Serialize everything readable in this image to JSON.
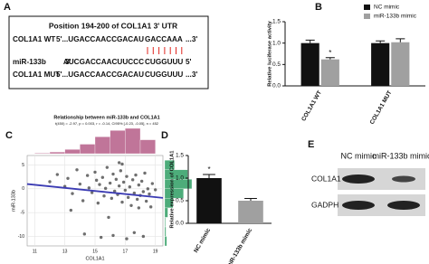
{
  "panel_labels": [
    "A",
    "B",
    "C",
    "D",
    "E"
  ],
  "sequence_panel": {
    "title": "Position 194-200 of COL1A1 3' UTR",
    "rows": [
      {
        "label": "COL1A1 WT",
        "seq": "5'...UGACCAACCGACAU",
        "site": "GACCAAA",
        "right": "...3'"
      },
      {
        "label": "miR-133b",
        "left": "3'",
        "seq": "AUCGACCAACUUCCC",
        "site": "CUGGUUU",
        "right": "5'"
      },
      {
        "label": "COL1A1 MUT",
        "seq": "5'...UGACCAACCGACAU",
        "site": "CUGGUUU",
        "right": "...3'"
      }
    ],
    "site_color": "#e0261f"
  },
  "chart_data": [
    {
      "type": "bar",
      "ylabel": "Relative luciferase activity",
      "categories": [
        "COL1A1 WT",
        "COL1A1 MUT"
      ],
      "series": [
        {
          "name": "NC mimic",
          "color": "#111111",
          "values": [
            1.0,
            1.0
          ],
          "errors": [
            0.07,
            0.05
          ]
        },
        {
          "name": "miR-133b mimic",
          "color": "#a0a0a0",
          "values": [
            0.62,
            1.02
          ],
          "errors": [
            0.04,
            0.08
          ]
        }
      ],
      "ylim": [
        0,
        1.5
      ],
      "yticks": [
        {
          "value": 0,
          "label": "0.0"
        },
        {
          "value": 0.5,
          "label": "0.5"
        },
        {
          "value": 1,
          "label": "1.0"
        },
        {
          "value": 1.5,
          "label": "1.5"
        }
      ],
      "annotation": "*",
      "legend": "top-right"
    },
    {
      "type": "scatter",
      "title": "Relationship between miR-133b and COL1A1",
      "subtitle": "t(450) = -2.97, p = 0.003, r = -0.14, CI95% [-0.23, -0.05], n = 452",
      "xlabel": "COL1A1",
      "ylabel": "miR-133b",
      "color": "#222222",
      "x": [
        12.0,
        12.5,
        13.0,
        13.2,
        13.5,
        13.8,
        14.0,
        14.2,
        14.5,
        14.6,
        14.8,
        15.0,
        15.1,
        15.2,
        15.3,
        15.5,
        15.6,
        15.7,
        15.8,
        16.0,
        16.1,
        16.2,
        16.3,
        16.4,
        16.5,
        16.6,
        16.7,
        16.8,
        16.9,
        17.0,
        17.1,
        17.2,
        17.3,
        17.4,
        17.5,
        17.6,
        17.7,
        17.8,
        17.9,
        18.0,
        18.1,
        18.2,
        18.3,
        18.4,
        18.5,
        18.6,
        18.8,
        19.0,
        14.3,
        15.4,
        16.2,
        17.1,
        17.6,
        18.2,
        13.4,
        16.8,
        17.9,
        15.9,
        16.6,
        18.7
      ],
      "y": [
        1.5,
        3.0,
        0.5,
        2.2,
        -1.0,
        4.0,
        1.0,
        -2.5,
        2.8,
        0.2,
        -0.8,
        3.5,
        1.8,
        -3.0,
        0.9,
        2.4,
        -1.5,
        0.1,
        4.5,
        1.2,
        -2.0,
        3.1,
        -0.5,
        2.0,
        -1.2,
        0.6,
        3.8,
        -2.8,
        1.4,
        -0.3,
        2.6,
        -1.8,
        0.4,
        -3.5,
        1.9,
        -0.9,
        2.9,
        -2.2,
        0.8,
        -1.4,
        1.6,
        -0.6,
        3.3,
        -2.6,
        0.0,
        -1.1,
        1.1,
        -0.2,
        -9.5,
        -10.2,
        -9.8,
        -10.5,
        -9.2,
        -10.0,
        -4.5,
        5.2,
        -4.0,
        -6.0,
        5.5,
        -3.8
      ],
      "xlim": [
        10.5,
        19.5
      ],
      "ylim": [
        -12,
        7
      ],
      "xticks": [
        11,
        13,
        15,
        17,
        19
      ],
      "yticks": [
        -10,
        -5,
        0,
        5
      ],
      "grid": true,
      "fit": {
        "x": [
          10.5,
          19.5
        ],
        "y": [
          1.0,
          -1.9
        ],
        "color": "#3b3bb3"
      },
      "x_hist": {
        "bins": [
          11,
          12,
          13,
          14,
          15,
          16,
          17,
          18,
          19
        ],
        "counts": [
          3,
          8,
          20,
          45,
          80,
          110,
          120,
          66
        ],
        "color": "#b0527f"
      },
      "y_hist": {
        "bins": [
          -12,
          -10,
          -8,
          -6,
          -4,
          -2,
          0,
          2,
          4,
          6
        ],
        "counts": [
          10,
          6,
          4,
          15,
          40,
          90,
          130,
          110,
          47
        ],
        "color": "#2e9e63"
      }
    },
    {
      "type": "bar",
      "ylabel": "Relative expression of COL1A1",
      "categories": [
        "NC mimic",
        "miR-133b mimic"
      ],
      "values": [
        1.0,
        0.5
      ],
      "errors": [
        0.08,
        0.05
      ],
      "colors": [
        "#111111",
        "#a0a0a0"
      ],
      "ylim": [
        0,
        1.5
      ],
      "yticks": [
        {
          "value": 0,
          "label": "0.0"
        },
        {
          "value": 0.5,
          "label": "0.5"
        },
        {
          "value": 1,
          "label": "1.0"
        },
        {
          "value": 1.5,
          "label": "1.5"
        }
      ],
      "annotation": "*"
    }
  ],
  "blot": {
    "lanes": [
      "NC mimic",
      "miR-133b mimic"
    ],
    "rows": [
      "COL1A1",
      "GADPH"
    ]
  }
}
